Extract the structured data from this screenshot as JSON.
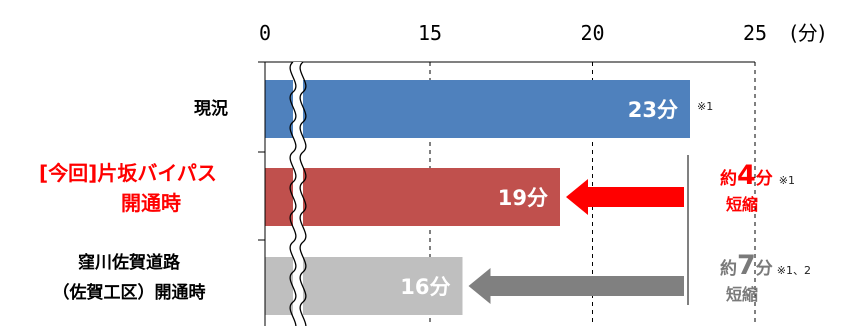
{
  "chart_data": {
    "type": "bar",
    "orientation": "horizontal",
    "unit_label": "(分)",
    "x_ticks": [
      "0",
      "15",
      "20",
      "25"
    ],
    "axis_break": true,
    "categories": [
      {
        "lines": [
          "現況"
        ],
        "value": 23,
        "label": "23分",
        "note": "※1",
        "color": "#4f81bd",
        "label_color": "#000000"
      },
      {
        "lines": [
          "[今回]片坂バイパス",
          "開通時"
        ],
        "value": 19,
        "label": "19分",
        "note": "",
        "color": "#c0504d",
        "label_color": "#ff0000"
      },
      {
        "lines": [
          "窪川佐賀道路",
          "（佐賀工区）開通時"
        ],
        "value": 16,
        "label": "16分",
        "note": "",
        "color": "#bfbfbf",
        "label_color": "#000000"
      }
    ],
    "annotations": [
      {
        "prefix": "約",
        "amount": "4",
        "unit": "分",
        "note": "※1",
        "suffix": "短縮",
        "color": "#ff0000",
        "arrow_color": "#ff0000"
      },
      {
        "prefix": "約",
        "amount": "7",
        "unit": "分",
        "note": "※1、2",
        "suffix": "短縮",
        "color": "#7a7a7a",
        "arrow_color": "#808080"
      }
    ]
  }
}
